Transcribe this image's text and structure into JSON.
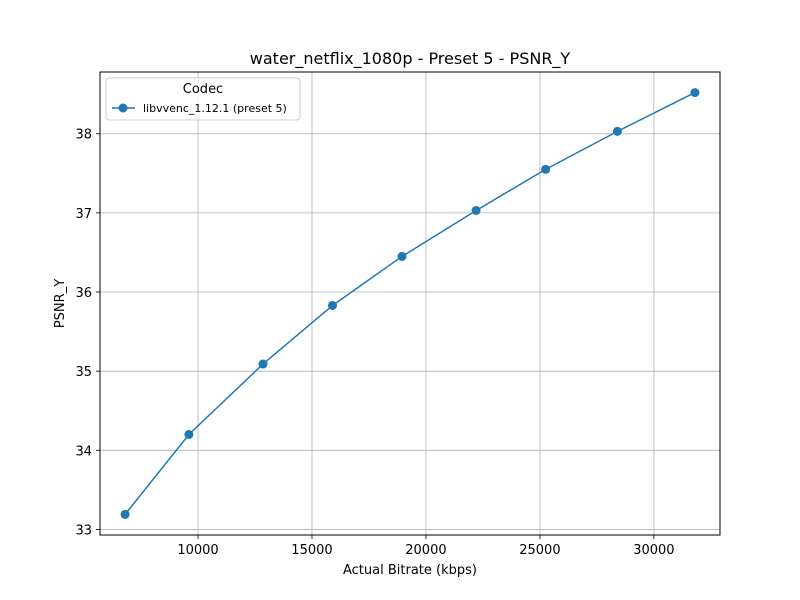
{
  "chart_data": {
    "type": "line",
    "title": "water_netflix_1080p - Preset 5 - PSNR_Y",
    "xlabel": "Actual Bitrate (kbps)",
    "ylabel": "PSNR_Y",
    "xlim": [
      5700,
      32900
    ],
    "ylim": [
      32.93,
      38.78
    ],
    "xticks": [
      10000,
      15000,
      20000,
      25000,
      30000
    ],
    "yticks": [
      33,
      34,
      35,
      36,
      37,
      38
    ],
    "grid": true,
    "legend": {
      "title": "Codec",
      "position": "top-left"
    },
    "series": [
      {
        "name": "libvvenc_1.12.1 (preset 5)",
        "color": "#1f77b4",
        "marker": "circle",
        "x": [
          6800,
          9600,
          12850,
          15900,
          18950,
          22200,
          25250,
          28400,
          31800
        ],
        "y": [
          33.19,
          34.2,
          35.09,
          35.83,
          36.45,
          37.03,
          37.55,
          38.03,
          38.52
        ]
      }
    ]
  }
}
